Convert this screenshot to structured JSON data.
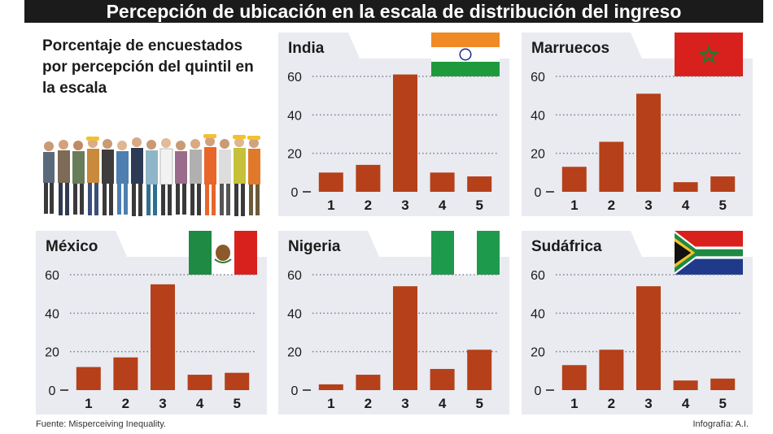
{
  "header": {
    "title": "Percepción de ubicación en la escala de distribución del ingreso"
  },
  "intro": {
    "text": "Porcentaje de encuestados por percepción del quintil en la escala"
  },
  "footer": {
    "source": "Fuente: Misperceiving Inequality.",
    "credit": "Infografía: A.I."
  },
  "colors": {
    "bar": "#b5401a",
    "panel": "#e9ebf0",
    "grid": "#7a7f8a",
    "header_bg": "#1b1b1b"
  },
  "chart_data": [
    {
      "type": "bar",
      "title": "India",
      "flag": "india-flag",
      "categories": [
        "1",
        "2",
        "3",
        "4",
        "5"
      ],
      "values": [
        10,
        14,
        61,
        10,
        8
      ],
      "ylim": [
        0,
        60
      ],
      "yticks": [
        "0",
        "20",
        "40",
        "60"
      ],
      "grid": true
    },
    {
      "type": "bar",
      "title": "Marruecos",
      "flag": "morocco-flag",
      "categories": [
        "1",
        "2",
        "3",
        "4",
        "5"
      ],
      "values": [
        13,
        26,
        51,
        5,
        8
      ],
      "ylim": [
        0,
        60
      ],
      "yticks": [
        "0",
        "20",
        "40",
        "60"
      ],
      "grid": true
    },
    {
      "type": "bar",
      "title": "México",
      "flag": "mexico-flag",
      "categories": [
        "1",
        "2",
        "3",
        "4",
        "5"
      ],
      "values": [
        12,
        17,
        55,
        8,
        9
      ],
      "ylim": [
        0,
        60
      ],
      "yticks": [
        "0",
        "20",
        "40",
        "60"
      ],
      "grid": true
    },
    {
      "type": "bar",
      "title": "Nigeria",
      "flag": "nigeria-flag",
      "categories": [
        "1",
        "2",
        "3",
        "4",
        "5"
      ],
      "values": [
        3,
        8,
        54,
        11,
        21
      ],
      "ylim": [
        0,
        60
      ],
      "yticks": [
        "0",
        "20",
        "40",
        "60"
      ],
      "grid": true
    },
    {
      "type": "bar",
      "title": "Sudáfrica",
      "flag": "south-africa-flag",
      "categories": [
        "1",
        "2",
        "3",
        "4",
        "5"
      ],
      "values": [
        13,
        21,
        54,
        5,
        6
      ],
      "ylim": [
        0,
        60
      ],
      "yticks": [
        "0",
        "20",
        "40",
        "60"
      ],
      "grid": true
    }
  ]
}
